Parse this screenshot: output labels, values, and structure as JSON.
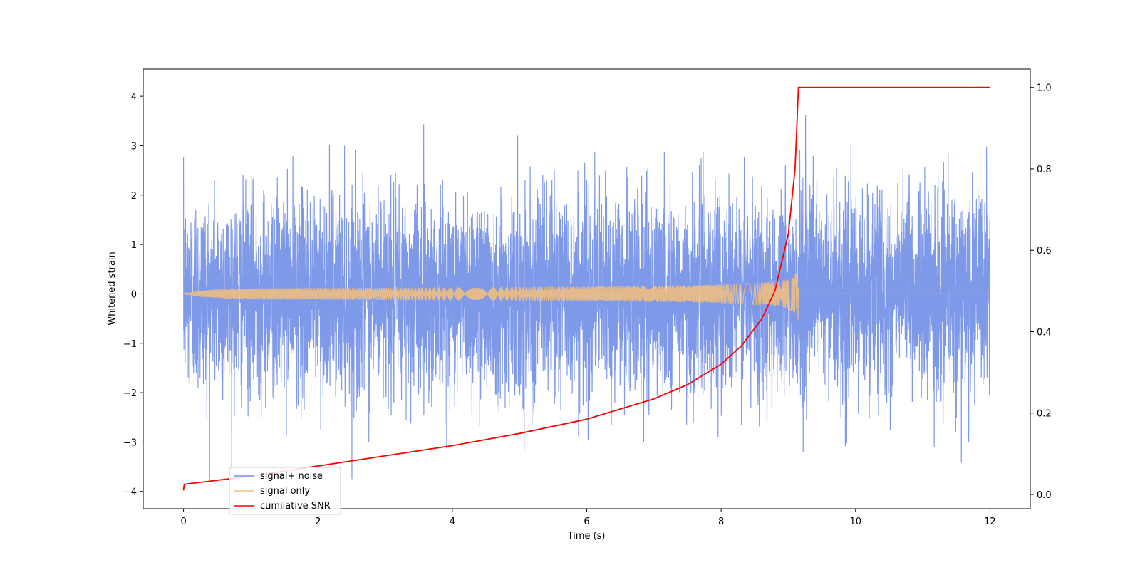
{
  "chart_data": {
    "type": "line",
    "title": "",
    "xlabel": "Time (s)",
    "ylabel": "Whitened strain",
    "ylabel_right": "",
    "xlim": [
      -0.6,
      12.6
    ],
    "ylim": [
      -4.35,
      4.55
    ],
    "ylim_right": [
      -0.035,
      1.045
    ],
    "x_ticks": [
      0,
      2,
      4,
      6,
      8,
      10,
      12
    ],
    "y_ticks": [
      -4,
      -3,
      -2,
      -1,
      0,
      1,
      2,
      3,
      4
    ],
    "y_ticks_right": [
      0.0,
      0.2,
      0.4,
      0.6,
      0.8,
      1.0
    ],
    "x_tick_labels": [
      "0",
      "2",
      "4",
      "6",
      "8",
      "10",
      "12"
    ],
    "y_tick_labels": [
      "−4",
      "−3",
      "−2",
      "−1",
      "0",
      "1",
      "2",
      "3",
      "4"
    ],
    "y_tick_labels_right": [
      "0.0",
      "0.2",
      "0.4",
      "0.6",
      "0.8",
      "1.0"
    ],
    "grid": false,
    "legend_position": "lower-left",
    "series": [
      {
        "name": "signal+ noise",
        "axis": "left",
        "color": "#7893e8",
        "description_of_values": "white noise, std ~1, range ~[-3.7, 4.2], over t in [0, 12]",
        "noise_std": 1.0,
        "x_range": [
          0,
          12
        ]
      },
      {
        "name": "signal only",
        "axis": "left",
        "color": "#f5c07a",
        "chirp_end_time": 9.15,
        "chirp_peak_amplitude": 0.78,
        "x_range": [
          0,
          12
        ]
      },
      {
        "name": "cumilative SNR",
        "axis": "right",
        "color": "#ff0000",
        "x": [
          0,
          0.01,
          1,
          2,
          3,
          4,
          5,
          6,
          7,
          7.5,
          8,
          8.3,
          8.6,
          8.8,
          9.0,
          9.1,
          9.15,
          12
        ],
        "values": [
          0.01,
          0.025,
          0.045,
          0.07,
          0.095,
          0.12,
          0.15,
          0.185,
          0.235,
          0.27,
          0.32,
          0.365,
          0.43,
          0.5,
          0.64,
          0.8,
          1.0,
          1.0
        ]
      }
    ]
  }
}
